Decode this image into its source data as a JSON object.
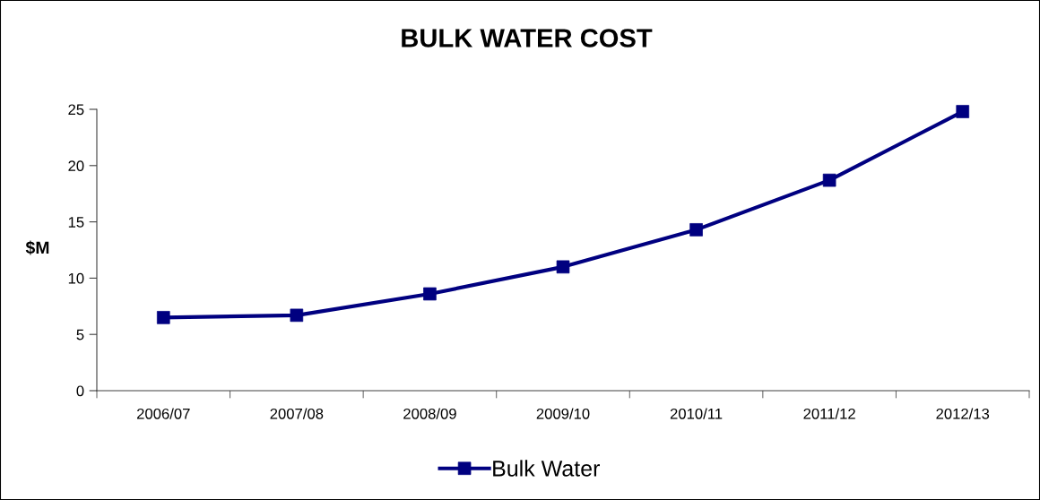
{
  "chart_data": {
    "type": "line",
    "title": "BULK WATER COST",
    "ylabel": "$M",
    "categories": [
      "2006/07",
      "2007/08",
      "2008/09",
      "2009/10",
      "2010/11",
      "2011/12",
      "2012/13"
    ],
    "series": [
      {
        "name": "Bulk Water",
        "color": "#000080",
        "values": [
          6.5,
          6.7,
          8.6,
          11.0,
          14.3,
          18.7,
          24.8
        ]
      }
    ],
    "ylim": [
      0,
      25
    ],
    "yticks": [
      0,
      5,
      10,
      15,
      20,
      25
    ],
    "grid": false,
    "legend": "bottom",
    "marker": "square",
    "line_style": "solid"
  }
}
